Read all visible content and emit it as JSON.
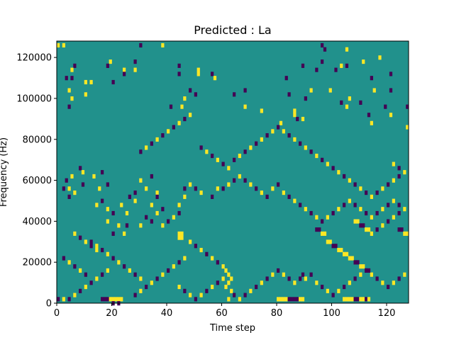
{
  "chart_data": {
    "type": "heatmap",
    "title": "Predicted : La",
    "xlabel": "Time step",
    "ylabel": "Frequency (Hz)",
    "xlim": [
      0,
      128
    ],
    "ylim": [
      0,
      128000
    ],
    "x_ticks": [
      "0",
      "20",
      "40",
      "60",
      "80",
      "100",
      "120"
    ],
    "y_ticks": [
      "0",
      "20000",
      "40000",
      "60000",
      "80000",
      "100000",
      "120000"
    ],
    "levels": {
      "low": -1,
      "mid": 0,
      "high": 1
    },
    "colors": {
      "low": "#440154",
      "mid": "#21918c",
      "high": "#fde725"
    },
    "grid_shape": [
      128,
      128
    ],
    "background_level": 0,
    "cells": [
      [
        0,
        126,
        1
      ],
      [
        2,
        126,
        1
      ],
      [
        6,
        116,
        -1
      ],
      [
        5,
        114,
        1
      ],
      [
        3,
        110,
        -1
      ],
      [
        5,
        110,
        -1
      ],
      [
        10,
        108,
        1
      ],
      [
        12,
        108,
        1
      ],
      [
        20,
        108,
        -1
      ],
      [
        4,
        104,
        1
      ],
      [
        5,
        100,
        1
      ],
      [
        10,
        102,
        1
      ],
      [
        4,
        96,
        -1
      ],
      [
        19,
        118,
        1
      ],
      [
        18,
        116,
        -1
      ],
      [
        24,
        114,
        1
      ],
      [
        24,
        112,
        -1
      ],
      [
        28,
        118,
        -1
      ],
      [
        28,
        114,
        1
      ],
      [
        30,
        126,
        -1
      ],
      [
        38,
        126,
        1
      ],
      [
        44,
        116,
        -1
      ],
      [
        44,
        112,
        -1
      ],
      [
        48,
        104,
        -1
      ],
      [
        46,
        100,
        1
      ],
      [
        41,
        96,
        -1
      ],
      [
        45,
        96,
        1
      ],
      [
        50,
        102,
        -1
      ],
      [
        51,
        112,
        1
      ],
      [
        56,
        112,
        -1
      ],
      [
        51,
        114,
        1
      ],
      [
        57,
        110,
        1
      ],
      [
        64,
        102,
        -1
      ],
      [
        68,
        104,
        -1
      ],
      [
        68,
        96,
        1
      ],
      [
        74,
        94,
        1
      ],
      [
        81,
        88,
        1
      ],
      [
        83,
        110,
        -1
      ],
      [
        84,
        102,
        -1
      ],
      [
        87,
        90,
        -1
      ],
      [
        89,
        90,
        1
      ],
      [
        86,
        92,
        1
      ],
      [
        86,
        94,
        1
      ],
      [
        89,
        116,
        -1
      ],
      [
        94,
        114,
        -1
      ],
      [
        91,
        128,
        -1
      ],
      [
        86,
        128,
        1
      ],
      [
        96,
        126,
        -1
      ],
      [
        97,
        124,
        -1
      ],
      [
        101,
        114,
        -1
      ],
      [
        103,
        116,
        1
      ],
      [
        105,
        116,
        -1
      ],
      [
        111,
        118,
        1
      ],
      [
        114,
        110,
        -1
      ],
      [
        115,
        104,
        1
      ],
      [
        121,
        112,
        -1
      ],
      [
        121,
        104,
        -1
      ],
      [
        127,
        96,
        -1
      ],
      [
        99,
        104,
        1
      ],
      [
        103,
        98,
        -1
      ],
      [
        110,
        98,
        -1
      ],
      [
        113,
        92,
        -1
      ],
      [
        114,
        88,
        1
      ],
      [
        121,
        92,
        1
      ],
      [
        119,
        96,
        -1
      ],
      [
        127,
        86,
        1
      ],
      [
        92,
        104,
        1
      ],
      [
        90,
        100,
        -1
      ],
      [
        105,
        96,
        1
      ],
      [
        106,
        100,
        1
      ],
      [
        117,
        120,
        1
      ],
      [
        96,
        118,
        -1
      ],
      [
        105,
        124,
        1
      ],
      [
        8,
        66,
        -1
      ],
      [
        9,
        64,
        1
      ],
      [
        3,
        60,
        -1
      ],
      [
        5,
        62,
        1
      ],
      [
        2,
        56,
        -1
      ],
      [
        4,
        56,
        1
      ],
      [
        9,
        58,
        -1
      ],
      [
        4,
        52,
        -1
      ],
      [
        6,
        54,
        1
      ],
      [
        15,
        56,
        1
      ],
      [
        16,
        64,
        -1
      ],
      [
        13,
        62,
        1
      ],
      [
        18,
        58,
        -1
      ],
      [
        16,
        50,
        -1
      ],
      [
        14,
        48,
        1
      ],
      [
        18,
        46,
        1
      ],
      [
        20,
        44,
        -1
      ],
      [
        18,
        40,
        1
      ],
      [
        22,
        38,
        1
      ],
      [
        20,
        34,
        -1
      ],
      [
        24,
        34,
        1
      ],
      [
        25,
        38,
        -1
      ],
      [
        25,
        44,
        1
      ],
      [
        23,
        48,
        1
      ],
      [
        26,
        52,
        -1
      ],
      [
        28,
        54,
        -1
      ],
      [
        28,
        50,
        1
      ],
      [
        32,
        56,
        1
      ],
      [
        30,
        60,
        1
      ],
      [
        34,
        62,
        -1
      ],
      [
        36,
        54,
        1
      ],
      [
        36,
        52,
        -1
      ],
      [
        34,
        48,
        1
      ],
      [
        32,
        42,
        -1
      ],
      [
        30,
        38,
        1
      ],
      [
        34,
        40,
        -1
      ],
      [
        36,
        44,
        1
      ],
      [
        38,
        46,
        -1
      ],
      [
        38,
        38,
        1
      ],
      [
        40,
        40,
        -1
      ],
      [
        42,
        42,
        1
      ],
      [
        44,
        44,
        -1
      ],
      [
        44,
        48,
        1
      ],
      [
        46,
        52,
        1
      ],
      [
        46,
        56,
        -1
      ],
      [
        48,
        58,
        1
      ],
      [
        50,
        56,
        -1
      ],
      [
        52,
        54,
        1
      ],
      [
        56,
        52,
        -1
      ],
      [
        58,
        56,
        1
      ],
      [
        60,
        56,
        -1
      ],
      [
        62,
        58,
        1
      ],
      [
        64,
        60,
        -1
      ],
      [
        66,
        62,
        1
      ],
      [
        68,
        60,
        -1
      ],
      [
        70,
        58,
        1
      ],
      [
        72,
        56,
        -1
      ],
      [
        74,
        54,
        1
      ],
      [
        76,
        52,
        -1
      ],
      [
        78,
        56,
        1
      ],
      [
        80,
        58,
        -1
      ],
      [
        82,
        54,
        1
      ],
      [
        84,
        52,
        -1
      ],
      [
        86,
        50,
        1
      ],
      [
        88,
        48,
        -1
      ],
      [
        90,
        46,
        1
      ],
      [
        92,
        44,
        -1
      ],
      [
        94,
        42,
        1
      ],
      [
        96,
        40,
        -1
      ],
      [
        98,
        42,
        1
      ],
      [
        100,
        44,
        -1
      ],
      [
        102,
        46,
        1
      ],
      [
        104,
        48,
        -1
      ],
      [
        106,
        50,
        1
      ],
      [
        108,
        48,
        -1
      ],
      [
        110,
        46,
        1
      ],
      [
        112,
        44,
        -1
      ],
      [
        114,
        42,
        1
      ],
      [
        116,
        44,
        -1
      ],
      [
        118,
        46,
        1
      ],
      [
        120,
        48,
        -1
      ],
      [
        122,
        50,
        1
      ],
      [
        124,
        48,
        -1
      ],
      [
        126,
        46,
        1
      ],
      [
        124,
        44,
        -1
      ],
      [
        122,
        42,
        1
      ],
      [
        120,
        40,
        -1
      ],
      [
        118,
        38,
        1
      ],
      [
        116,
        36,
        -1
      ],
      [
        114,
        34,
        1
      ],
      [
        44,
        34,
        1
      ],
      [
        44,
        32,
        1
      ],
      [
        45,
        34,
        1
      ],
      [
        45,
        32,
        1
      ],
      [
        48,
        30,
        1
      ],
      [
        50,
        28,
        -1
      ],
      [
        52,
        26,
        1
      ],
      [
        54,
        24,
        -1
      ],
      [
        56,
        22,
        1
      ],
      [
        58,
        20,
        -1
      ],
      [
        60,
        18,
        1
      ],
      [
        61,
        16,
        1
      ],
      [
        62,
        14,
        1
      ],
      [
        63,
        12,
        1
      ],
      [
        62,
        10,
        1
      ],
      [
        61,
        8,
        1
      ],
      [
        63,
        6,
        1
      ],
      [
        64,
        4,
        -1
      ],
      [
        66,
        2,
        1
      ],
      [
        68,
        4,
        -1
      ],
      [
        70,
        6,
        1
      ],
      [
        72,
        8,
        -1
      ],
      [
        74,
        10,
        1
      ],
      [
        76,
        12,
        -1
      ],
      [
        78,
        14,
        1
      ],
      [
        80,
        16,
        -1
      ],
      [
        82,
        14,
        1
      ],
      [
        84,
        12,
        -1
      ],
      [
        86,
        10,
        1
      ],
      [
        88,
        12,
        -1
      ],
      [
        89,
        14,
        -1
      ],
      [
        90,
        12,
        1
      ],
      [
        92,
        14,
        -1
      ],
      [
        94,
        10,
        1
      ],
      [
        96,
        8,
        -1
      ],
      [
        98,
        6,
        1
      ],
      [
        100,
        4,
        -1
      ],
      [
        102,
        6,
        1
      ],
      [
        104,
        8,
        -1
      ],
      [
        106,
        10,
        1
      ],
      [
        108,
        12,
        -1
      ],
      [
        110,
        14,
        1
      ],
      [
        112,
        16,
        -1
      ],
      [
        114,
        14,
        1
      ],
      [
        116,
        12,
        -1
      ],
      [
        118,
        10,
        1
      ],
      [
        120,
        8,
        -1
      ],
      [
        122,
        10,
        1
      ],
      [
        124,
        12,
        -1
      ],
      [
        126,
        14,
        1
      ],
      [
        0,
        2,
        -1
      ],
      [
        2,
        2,
        1
      ],
      [
        4,
        2,
        -1
      ],
      [
        6,
        4,
        1
      ],
      [
        8,
        6,
        -1
      ],
      [
        10,
        8,
        1
      ],
      [
        12,
        10,
        -1
      ],
      [
        14,
        12,
        1
      ],
      [
        16,
        14,
        -1
      ],
      [
        18,
        16,
        1
      ],
      [
        16,
        2,
        -1
      ],
      [
        17,
        2,
        -1
      ],
      [
        18,
        2,
        -1
      ],
      [
        19,
        2,
        1
      ],
      [
        20,
        2,
        1
      ],
      [
        21,
        2,
        1
      ],
      [
        22,
        2,
        1
      ],
      [
        23,
        2,
        1
      ],
      [
        20,
        0,
        -1
      ],
      [
        22,
        0,
        -1
      ],
      [
        28,
        4,
        -1
      ],
      [
        30,
        6,
        1
      ],
      [
        32,
        8,
        -1
      ],
      [
        34,
        10,
        1
      ],
      [
        36,
        12,
        -1
      ],
      [
        38,
        14,
        1
      ],
      [
        40,
        16,
        -1
      ],
      [
        42,
        18,
        1
      ],
      [
        44,
        20,
        -1
      ],
      [
        46,
        22,
        1
      ],
      [
        44,
        8,
        1
      ],
      [
        46,
        6,
        -1
      ],
      [
        48,
        4,
        1
      ],
      [
        50,
        2,
        -1
      ],
      [
        52,
        4,
        1
      ],
      [
        54,
        6,
        -1
      ],
      [
        56,
        8,
        1
      ],
      [
        58,
        10,
        -1
      ],
      [
        60,
        12,
        1
      ],
      [
        62,
        2,
        1
      ],
      [
        80,
        2,
        1
      ],
      [
        81,
        2,
        1
      ],
      [
        82,
        2,
        1
      ],
      [
        83,
        2,
        1
      ],
      [
        84,
        2,
        -1
      ],
      [
        85,
        2,
        -1
      ],
      [
        86,
        2,
        -1
      ],
      [
        87,
        2,
        -1
      ],
      [
        88,
        2,
        1
      ],
      [
        89,
        2,
        1
      ],
      [
        104,
        2,
        1
      ],
      [
        105,
        2,
        1
      ],
      [
        106,
        2,
        1
      ],
      [
        107,
        2,
        1
      ],
      [
        108,
        2,
        -1
      ],
      [
        109,
        2,
        -1
      ],
      [
        110,
        2,
        1
      ],
      [
        111,
        2,
        1
      ],
      [
        112,
        2,
        -1
      ],
      [
        113,
        2,
        1
      ],
      [
        30,
        74,
        -1
      ],
      [
        32,
        76,
        1
      ],
      [
        34,
        78,
        -1
      ],
      [
        36,
        80,
        1
      ],
      [
        38,
        82,
        -1
      ],
      [
        40,
        84,
        1
      ],
      [
        42,
        86,
        -1
      ],
      [
        44,
        88,
        1
      ],
      [
        46,
        90,
        -1
      ],
      [
        48,
        92,
        1
      ],
      [
        52,
        76,
        -1
      ],
      [
        54,
        74,
        1
      ],
      [
        56,
        72,
        -1
      ],
      [
        58,
        70,
        1
      ],
      [
        60,
        68,
        -1
      ],
      [
        62,
        66,
        1
      ],
      [
        64,
        70,
        -1
      ],
      [
        66,
        72,
        1
      ],
      [
        68,
        74,
        -1
      ],
      [
        70,
        76,
        1
      ],
      [
        72,
        78,
        -1
      ],
      [
        74,
        80,
        1
      ],
      [
        76,
        82,
        -1
      ],
      [
        78,
        84,
        1
      ],
      [
        80,
        86,
        -1
      ],
      [
        82,
        84,
        1
      ],
      [
        84,
        82,
        -1
      ],
      [
        86,
        80,
        1
      ],
      [
        88,
        78,
        -1
      ],
      [
        90,
        76,
        1
      ],
      [
        92,
        74,
        -1
      ],
      [
        94,
        72,
        1
      ],
      [
        96,
        70,
        -1
      ],
      [
        98,
        68,
        1
      ],
      [
        100,
        66,
        -1
      ],
      [
        102,
        64,
        1
      ],
      [
        104,
        62,
        -1
      ],
      [
        106,
        60,
        1
      ],
      [
        108,
        58,
        -1
      ],
      [
        110,
        56,
        1
      ],
      [
        112,
        54,
        -1
      ],
      [
        114,
        52,
        1
      ],
      [
        116,
        54,
        -1
      ],
      [
        118,
        56,
        1
      ],
      [
        120,
        58,
        -1
      ],
      [
        122,
        60,
        1
      ],
      [
        124,
        62,
        -1
      ],
      [
        126,
        64,
        1
      ],
      [
        124,
        66,
        -1
      ],
      [
        122,
        68,
        1
      ],
      [
        12,
        30,
        -1
      ],
      [
        14,
        28,
        1
      ],
      [
        16,
        26,
        -1
      ],
      [
        18,
        24,
        1
      ],
      [
        20,
        22,
        -1
      ],
      [
        22,
        20,
        1
      ],
      [
        24,
        18,
        -1
      ],
      [
        26,
        16,
        1
      ],
      [
        28,
        14,
        -1
      ],
      [
        30,
        12,
        1
      ],
      [
        6,
        34,
        1
      ],
      [
        8,
        32,
        -1
      ],
      [
        10,
        30,
        1
      ],
      [
        12,
        28,
        -1
      ],
      [
        14,
        26,
        1
      ],
      [
        2,
        22,
        -1
      ],
      [
        4,
        20,
        1
      ],
      [
        6,
        18,
        -1
      ],
      [
        8,
        16,
        1
      ],
      [
        10,
        14,
        -1
      ],
      [
        104,
        24,
        1
      ],
      [
        105,
        24,
        1
      ],
      [
        106,
        22,
        1
      ],
      [
        107,
        22,
        1
      ],
      [
        108,
        20,
        -1
      ],
      [
        109,
        20,
        -1
      ],
      [
        110,
        18,
        1
      ],
      [
        111,
        18,
        1
      ],
      [
        112,
        16,
        -1
      ],
      [
        113,
        16,
        -1
      ],
      [
        98,
        30,
        1
      ],
      [
        99,
        30,
        1
      ],
      [
        100,
        28,
        -1
      ],
      [
        101,
        28,
        -1
      ],
      [
        102,
        26,
        1
      ],
      [
        103,
        26,
        1
      ],
      [
        94,
        36,
        -1
      ],
      [
        95,
        36,
        -1
      ],
      [
        96,
        34,
        1
      ],
      [
        97,
        34,
        1
      ],
      [
        108,
        40,
        1
      ],
      [
        109,
        40,
        1
      ],
      [
        110,
        38,
        -1
      ],
      [
        111,
        38,
        -1
      ],
      [
        112,
        36,
        1
      ],
      [
        113,
        36,
        1
      ],
      [
        124,
        36,
        -1
      ],
      [
        125,
        36,
        -1
      ],
      [
        126,
        34,
        1
      ],
      [
        127,
        34,
        1
      ]
    ]
  }
}
